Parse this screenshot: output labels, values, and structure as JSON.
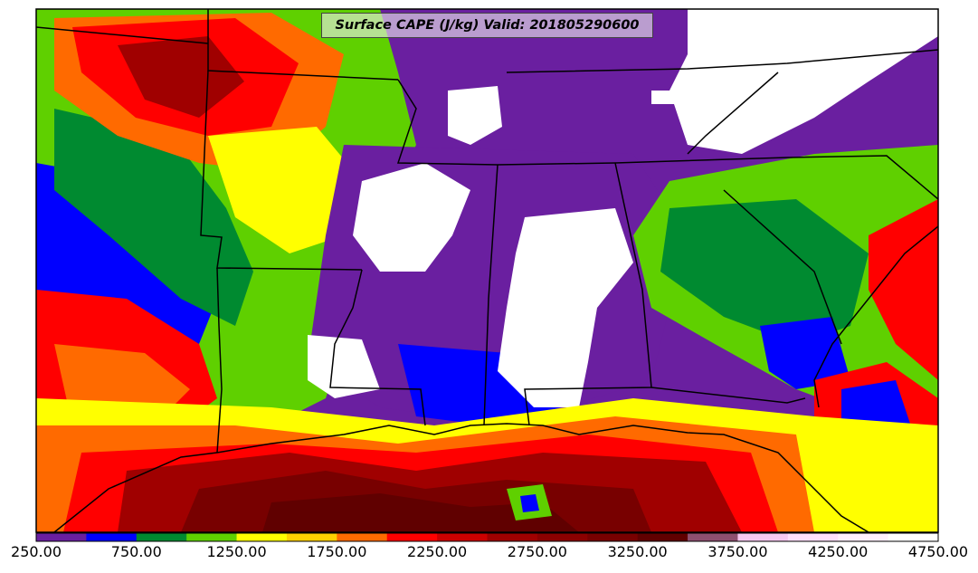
{
  "map": {
    "title": "Surface CAPE (J/kg) Valid: 201805290600",
    "variable": "Surface CAPE",
    "units": "J/kg",
    "valid_time": "201805290600"
  },
  "colorbar": {
    "tick_labels": [
      "250.00",
      "750.00",
      "1250.00",
      "1750.00",
      "2250.00",
      "2750.00",
      "3250.00",
      "3750.00",
      "4250.00",
      "4750.00"
    ],
    "levels": [
      250,
      500,
      750,
      1000,
      1250,
      1500,
      1750,
      2000,
      2250,
      2500,
      2750,
      3000,
      3250,
      3500,
      3750,
      4000,
      4250,
      4500,
      4750
    ],
    "colors": [
      "#6a1fa0",
      "#0000ff",
      "#008a30",
      "#5fd000",
      "#ffff00",
      "#ffd000",
      "#ff6a00",
      "#ff0000",
      "#cc0000",
      "#a00000",
      "#8b0000",
      "#780000",
      "#600000",
      "#8f5070",
      "#f7c8f0",
      "#ffe0fb",
      "#fff0fd",
      "#ffffff"
    ]
  },
  "palette": {
    "border": "#000000",
    "no_data": "#ffffff"
  }
}
